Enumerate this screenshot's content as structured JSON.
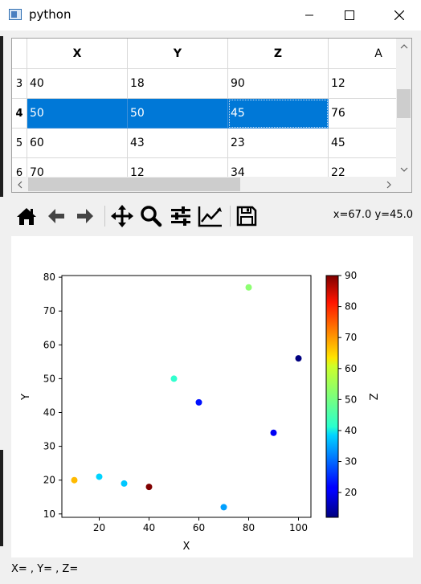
{
  "window": {
    "title": "python",
    "minimize_icon": "minimize-icon",
    "maximize_icon": "maximize-icon",
    "close_icon": "close-icon"
  },
  "table": {
    "columns": [
      "X",
      "Y",
      "Z",
      "A"
    ],
    "rows": [
      {
        "header": "3",
        "cells": [
          "40",
          "18",
          "90",
          "12"
        ]
      },
      {
        "header": "4",
        "cells": [
          "50",
          "50",
          "45",
          "76"
        ],
        "selected": true
      },
      {
        "header": "5",
        "cells": [
          "60",
          "43",
          "23",
          "45"
        ]
      },
      {
        "header": "6",
        "cells": [
          "70",
          "12",
          "34",
          "22"
        ]
      }
    ]
  },
  "toolbar": {
    "buttons": [
      "home-icon",
      "back-icon",
      "forward-icon",
      "pan-icon",
      "zoom-icon",
      "configure-subplots-icon",
      "edit-axis-icon",
      "save-icon"
    ],
    "coords": "x=67.0 y=45.0"
  },
  "status": {
    "text": "X= , Y= , Z="
  },
  "colors": {
    "selection": "#0078d7",
    "accent_cmap": "jet"
  },
  "chart_data": {
    "type": "scatter",
    "xlabel": "X",
    "ylabel": "Y",
    "colorbar_label": "Z",
    "xlim": [
      5,
      105
    ],
    "ylim": [
      9,
      80.5
    ],
    "xticks": [
      20,
      40,
      60,
      80,
      100
    ],
    "yticks": [
      10,
      20,
      30,
      40,
      50,
      60,
      70,
      80
    ],
    "clim": [
      12,
      90
    ],
    "cticks": [
      20,
      30,
      40,
      50,
      60,
      70,
      80,
      90
    ],
    "colormap": "jet",
    "points": [
      {
        "x": 10,
        "y": 20,
        "z": 66
      },
      {
        "x": 20,
        "y": 21,
        "z": 38
      },
      {
        "x": 30,
        "y": 19,
        "z": 37
      },
      {
        "x": 40,
        "y": 18,
        "z": 90
      },
      {
        "x": 50,
        "y": 50,
        "z": 45
      },
      {
        "x": 60,
        "y": 43,
        "z": 23
      },
      {
        "x": 70,
        "y": 12,
        "z": 34
      },
      {
        "x": 80,
        "y": 77,
        "z": 52
      },
      {
        "x": 90,
        "y": 34,
        "z": 21
      },
      {
        "x": 100,
        "y": 56,
        "z": 12
      }
    ]
  }
}
